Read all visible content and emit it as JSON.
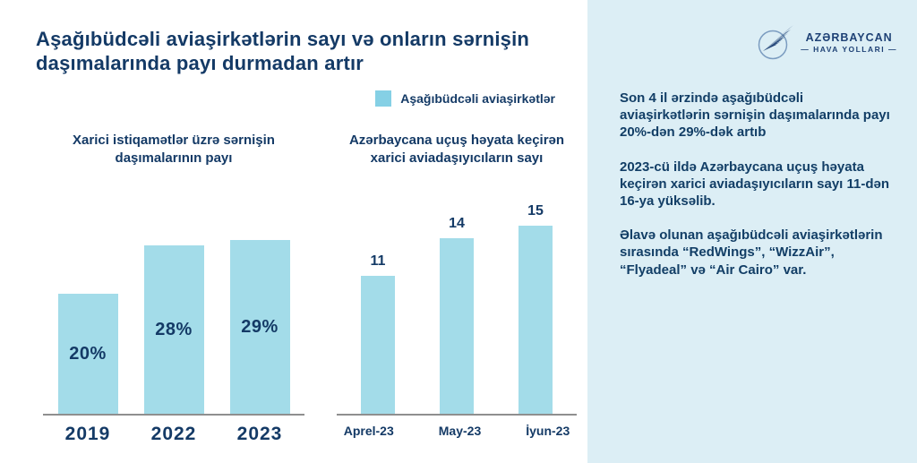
{
  "title": "Aşağıbüdcəli aviaşirkətlərin sayı və onların sərnişin daşımalarında payı durmadan artır",
  "legend": {
    "label": "Aşağıbüdcəli aviaşirkətlər",
    "swatch_color": "#85d0e5"
  },
  "chart_data": [
    {
      "type": "bar",
      "title": "Xarici istiqamətlər üzrə sərnişin daşımalarının payı",
      "categories": [
        "2019",
        "2022",
        "2023"
      ],
      "values": [
        20,
        28,
        29
      ],
      "value_labels": [
        "20%",
        "28%",
        "29%"
      ],
      "unit": "%",
      "ylim": [
        0,
        30
      ],
      "grid": false,
      "label_position": "inside-center",
      "bar_color": "#a3dce9"
    },
    {
      "type": "bar",
      "title": "Azərbaycana uçuş həyata keçirən xarici aviadaşıyıcıların sayı",
      "categories": [
        "Aprel-23",
        "May-23",
        "İyun-23"
      ],
      "values": [
        11,
        14,
        15
      ],
      "value_labels": [
        "11",
        "14",
        "15"
      ],
      "ylim": [
        0,
        16
      ],
      "grid": false,
      "label_position": "above",
      "bar_color": "#a3dce9"
    }
  ],
  "sidebar": {
    "logo": {
      "line1": "AZƏRBAYCAN",
      "line2": "— HAVA YOLLARI —"
    },
    "paragraphs": [
      "Son 4 il ərzində aşağıbüdcəli aviaşirkətlərin sərnişin daşımalarında payı 20%-dən 29%-dək artıb",
      "2023-cü ildə Azərbaycana uçuş həyata keçirən xarici aviadaşıyıcıların sayı 11-dən 16-ya yüksəlib.",
      "Əlavə olunan aşağıbüdcəli aviaşirkətlərin sırasında “RedWings”, “WizzAir”, “Flyadeal” və “Air Cairo” var."
    ],
    "bg_color": "#dceef5"
  },
  "colors": {
    "navy_text": "#143a66",
    "bar_fill": "#a3dce9",
    "panel_bg": "#dceef5",
    "axis_line": "#8f8f8f",
    "logo_navy": "#1e4175"
  }
}
